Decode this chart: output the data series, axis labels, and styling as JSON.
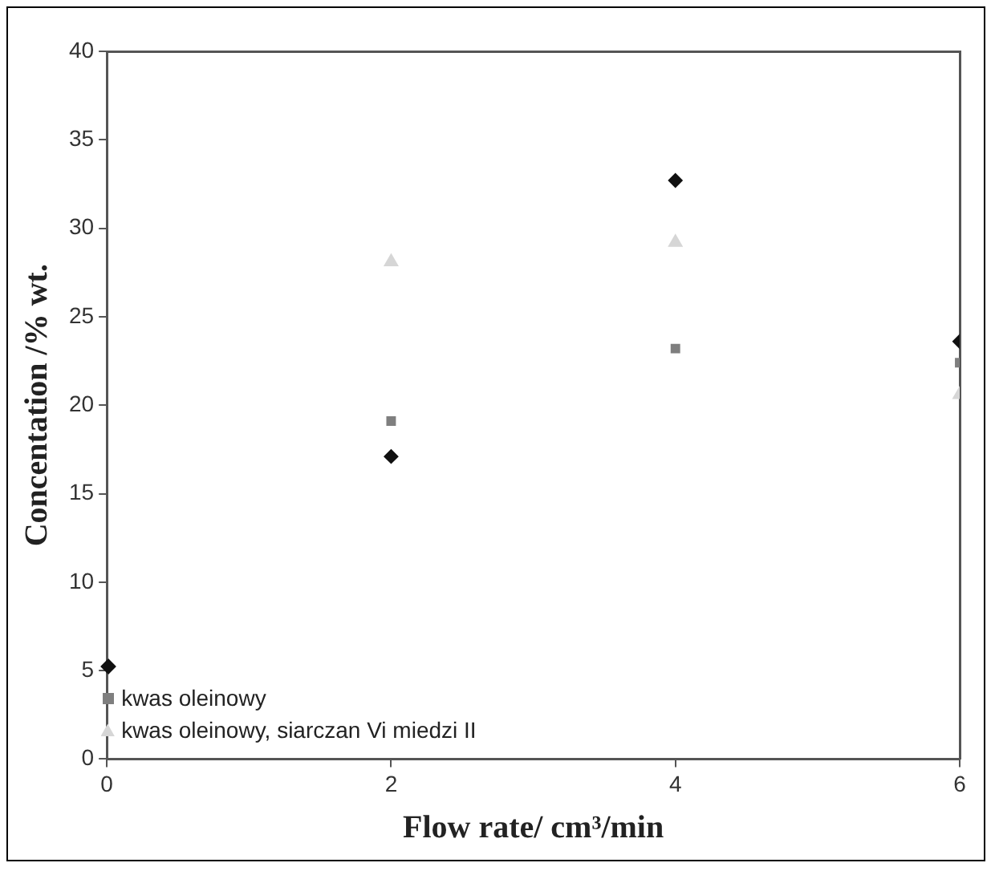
{
  "chart_data": {
    "type": "scatter",
    "xlabel": "Flow rate/ cm³/min",
    "ylabel": "Concentation /% wt.",
    "xlim": [
      0,
      6
    ],
    "xticks": [
      0,
      2,
      4,
      6
    ],
    "ylim": [
      0,
      40
    ],
    "yticks": [
      0,
      5,
      10,
      15,
      20,
      25,
      30,
      35,
      40
    ],
    "grid": false,
    "legend": "bottom left",
    "series": [
      {
        "color": "#111111",
        "marker": "diamond",
        "x": [
          2,
          4,
          6
        ],
        "values": [
          17.1,
          32.7,
          23.6
        ]
      },
      {
        "name": "kwas oleinowy",
        "color": "#7f7f7f",
        "marker": "square",
        "x": [
          2,
          4,
          6
        ],
        "values": [
          19.1,
          23.2,
          22.4
        ]
      },
      {
        "name": "kwas oleinowy, siarczan Vi miedzi II",
        "color": "#d6d6d6",
        "marker": "triangle",
        "x": [
          2,
          4,
          6
        ],
        "values": [
          28.1,
          29.2,
          20.6
        ]
      }
    ]
  }
}
